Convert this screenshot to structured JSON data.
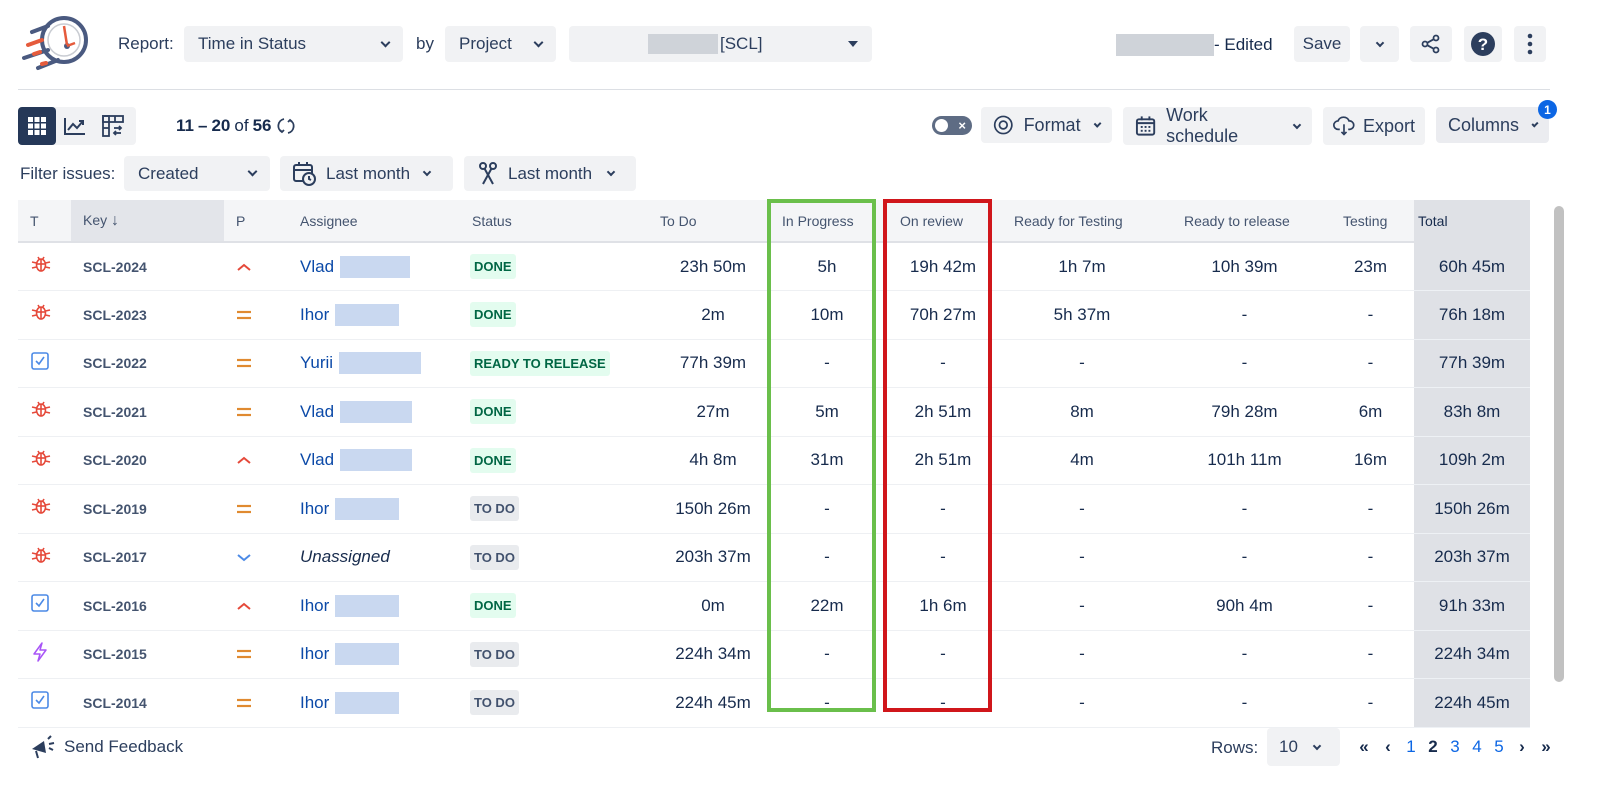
{
  "header": {
    "report_label": "Report:",
    "report_value": "Time in Status",
    "by_label": "by",
    "by_value": "Project",
    "project_value": "[SCL]",
    "edited_suffix": "- Edited",
    "save_label": "Save"
  },
  "toolbar": {
    "range_start": "11",
    "range_end": "20",
    "of_label": "of",
    "total": "56",
    "format_label": "Format",
    "work_schedule_label": "Work schedule",
    "export_label": "Export",
    "columns_label": "Columns",
    "columns_badge": "1"
  },
  "filters": {
    "label": "Filter issues:",
    "field": "Created",
    "date_range_1": "Last month",
    "date_range_2": "Last month"
  },
  "table": {
    "headers": {
      "type": "T",
      "key": "Key",
      "priority": "P",
      "assignee": "Assignee",
      "status": "Status",
      "todo": "To Do",
      "in_progress": "In Progress",
      "on_review": "On review",
      "ready_for_testing": "Ready for Testing",
      "ready_to_release": "Ready to release",
      "testing": "Testing",
      "total": "Total"
    },
    "rows": [
      {
        "type": "bug",
        "key": "SCL-2024",
        "priority": "high",
        "assignee": "Vlad",
        "status": "DONE",
        "status_kind": "done",
        "todo": "23h 50m",
        "in_progress": "5h",
        "on_review": "19h 42m",
        "ready_for_testing": "1h 7m",
        "ready_to_release": "10h 39m",
        "testing": "23m",
        "total": "60h 45m"
      },
      {
        "type": "bug",
        "key": "SCL-2023",
        "priority": "medium",
        "assignee": "Ihor",
        "status": "DONE",
        "status_kind": "done",
        "todo": "2m",
        "in_progress": "10m",
        "on_review": "70h 27m",
        "ready_for_testing": "5h 37m",
        "ready_to_release": "-",
        "testing": "-",
        "total": "76h 18m"
      },
      {
        "type": "task",
        "key": "SCL-2022",
        "priority": "medium",
        "assignee": "Yurii",
        "status": "READY TO RELEASE",
        "status_kind": "done",
        "todo": "77h 39m",
        "in_progress": "-",
        "on_review": "-",
        "ready_for_testing": "-",
        "ready_to_release": "-",
        "testing": "-",
        "total": "77h 39m"
      },
      {
        "type": "bug",
        "key": "SCL-2021",
        "priority": "medium",
        "assignee": "Vlad",
        "status": "DONE",
        "status_kind": "done",
        "todo": "27m",
        "in_progress": "5m",
        "on_review": "2h 51m",
        "ready_for_testing": "8m",
        "ready_to_release": "79h 28m",
        "testing": "6m",
        "total": "83h 8m"
      },
      {
        "type": "bug",
        "key": "SCL-2020",
        "priority": "high",
        "assignee": "Vlad",
        "status": "DONE",
        "status_kind": "done",
        "todo": "4h 8m",
        "in_progress": "31m",
        "on_review": "2h 51m",
        "ready_for_testing": "4m",
        "ready_to_release": "101h 11m",
        "testing": "16m",
        "total": "109h 2m"
      },
      {
        "type": "bug",
        "key": "SCL-2019",
        "priority": "medium",
        "assignee": "Ihor",
        "status": "TO DO",
        "status_kind": "todo",
        "todo": "150h 26m",
        "in_progress": "-",
        "on_review": "-",
        "ready_for_testing": "-",
        "ready_to_release": "-",
        "testing": "-",
        "total": "150h 26m"
      },
      {
        "type": "bug",
        "key": "SCL-2017",
        "priority": "low",
        "assignee": "Unassigned",
        "status": "TO DO",
        "status_kind": "todo",
        "todo": "203h 37m",
        "in_progress": "-",
        "on_review": "-",
        "ready_for_testing": "-",
        "ready_to_release": "-",
        "testing": "-",
        "total": "203h 37m"
      },
      {
        "type": "task",
        "key": "SCL-2016",
        "priority": "high",
        "assignee": "Ihor",
        "status": "DONE",
        "status_kind": "done",
        "todo": "0m",
        "in_progress": "22m",
        "on_review": "1h 6m",
        "ready_for_testing": "-",
        "ready_to_release": "90h 4m",
        "testing": "-",
        "total": "91h 33m"
      },
      {
        "type": "epic",
        "key": "SCL-2015",
        "priority": "medium",
        "assignee": "Ihor",
        "status": "TO DO",
        "status_kind": "todo",
        "todo": "224h 34m",
        "in_progress": "-",
        "on_review": "-",
        "ready_for_testing": "-",
        "ready_to_release": "-",
        "testing": "-",
        "total": "224h 34m"
      },
      {
        "type": "task",
        "key": "SCL-2014",
        "priority": "medium",
        "assignee": "Ihor",
        "status": "TO DO",
        "status_kind": "todo",
        "todo": "224h 45m",
        "in_progress": "-",
        "on_review": "-",
        "ready_for_testing": "-",
        "ready_to_release": "-",
        "testing": "-",
        "total": "224h 45m"
      }
    ]
  },
  "highlights": {
    "in_progress_color": "#6abf4b",
    "on_review_color": "#d0161b"
  },
  "footer": {
    "feedback_label": "Send Feedback",
    "rows_label": "Rows:",
    "rows_value": "10",
    "pages": [
      "1",
      "2",
      "3",
      "4",
      "5"
    ],
    "current_page": "2"
  }
}
